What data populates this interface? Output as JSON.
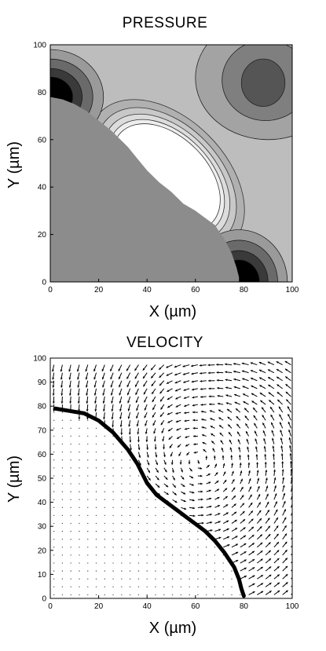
{
  "chart_data": [
    {
      "type": "heatmap",
      "subtype": "filled-contour",
      "title": "PRESSURE",
      "xlabel": "X (µm)",
      "ylabel": "Y (µm)",
      "xlim": [
        0,
        100
      ],
      "ylim": [
        0,
        100
      ],
      "xticks": [
        0,
        20,
        40,
        60,
        80,
        100
      ],
      "yticks": [
        0,
        20,
        40,
        60,
        80,
        100
      ],
      "boundary": {
        "x": [
          0,
          5,
          10,
          15,
          20,
          25,
          28,
          32,
          36,
          40,
          45,
          50,
          55,
          60,
          64,
          68,
          72,
          75,
          77,
          78,
          78
        ],
        "y": [
          78,
          77,
          75,
          72,
          68,
          64,
          61,
          57,
          52,
          47,
          42,
          38,
          33,
          30,
          27,
          24,
          18,
          12,
          6,
          2,
          0
        ]
      },
      "regions": [
        {
          "name": "solid",
          "color": "#8c8c8c"
        },
        {
          "name": "low-pressure-ellipse",
          "center": [
            48,
            44
          ],
          "radii": [
            17,
            27
          ],
          "angle_deg": -45,
          "color": "#ffffff"
        },
        {
          "name": "low-pressure-lobe",
          "center": [
            88,
            84
          ],
          "radii": [
            9,
            10
          ],
          "color": "#555555"
        }
      ],
      "grid": false
    },
    {
      "type": "scatter",
      "subtype": "vector-field",
      "title": "VELOCITY",
      "xlabel": "X (µm)",
      "ylabel": "Y (µm)",
      "xlim": [
        0,
        100
      ],
      "ylim": [
        0,
        100
      ],
      "xticks": [
        0,
        20,
        40,
        60,
        80,
        100
      ],
      "yticks": [
        0,
        10,
        20,
        30,
        40,
        50,
        60,
        70,
        80,
        90,
        100
      ],
      "grid_step": [
        3.5,
        3.3
      ],
      "boundary": {
        "x": [
          2,
          8,
          14,
          20,
          26,
          32,
          36,
          40,
          44,
          48,
          52,
          56,
          60,
          64,
          68,
          72,
          76,
          78,
          79,
          80
        ],
        "y": [
          79,
          78,
          77,
          74,
          69,
          62,
          56,
          48,
          43,
          40,
          37,
          34,
          31,
          28,
          24,
          19,
          13,
          8,
          4,
          1
        ]
      },
      "vortex_center": [
        62,
        58
      ],
      "grid": false
    }
  ]
}
